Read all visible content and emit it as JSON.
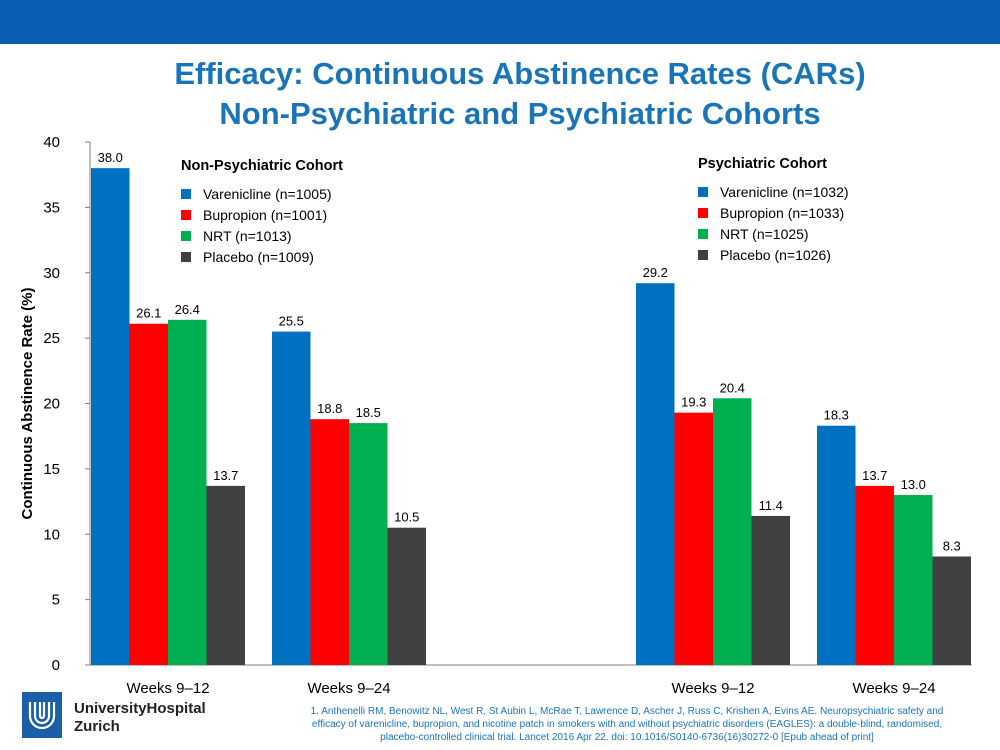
{
  "header": {
    "title_line1": "Efficacy:  Continuous Abstinence Rates (CARs)",
    "title_line2": "Non-Psychiatric and Psychiatric Cohorts"
  },
  "chart_data": {
    "type": "bar",
    "ylabel": "Continuous Abstinence Rate (%)",
    "ylim": [
      0,
      40
    ],
    "yticks": [
      0,
      5,
      10,
      15,
      20,
      25,
      30,
      35,
      40
    ],
    "categories": [
      "Weeks 9–12",
      "Weeks 9–24",
      "Weeks 9–12",
      "Weeks 9–24"
    ],
    "series": [
      {
        "name": "Varenicline",
        "color": "#0070c0",
        "values": [
          38.0,
          25.5,
          29.2,
          18.3
        ],
        "labels": [
          "38.0",
          "25.5",
          "29.2",
          "18.3"
        ]
      },
      {
        "name": "Bupropion",
        "color": "#ff0000",
        "values": [
          26.1,
          18.8,
          19.3,
          13.7
        ],
        "labels": [
          "26.1",
          "18.8",
          "19.3",
          "13.7"
        ]
      },
      {
        "name": "NRT",
        "color": "#00b050",
        "values": [
          26.4,
          18.5,
          20.4,
          13.0
        ],
        "labels": [
          "26.4",
          "18.5",
          "20.4",
          "13.0"
        ]
      },
      {
        "name": "Placebo",
        "color": "#404040",
        "values": [
          13.7,
          10.5,
          11.4,
          8.3
        ],
        "labels": [
          "13.7",
          "10.5",
          "11.4",
          "8.3"
        ]
      }
    ],
    "grid": false
  },
  "legends": [
    {
      "title": "Non-Psychiatric Cohort",
      "items": [
        {
          "label": "Varenicline (n=1005)",
          "color": "#0070c0"
        },
        {
          "label": "Bupropion (n=1001)",
          "color": "#ff0000"
        },
        {
          "label": "NRT (n=1013)",
          "color": "#00b050"
        },
        {
          "label": "Placebo (n=1009)",
          "color": "#404040"
        }
      ]
    },
    {
      "title": "Psychiatric Cohort",
      "items": [
        {
          "label": "Varenicline (n=1032)",
          "color": "#0070c0"
        },
        {
          "label": "Bupropion (n=1033)",
          "color": "#ff0000"
        },
        {
          "label": "NRT (n=1025)",
          "color": "#00b050"
        },
        {
          "label": "Placebo (n=1026)",
          "color": "#404040"
        }
      ]
    }
  ],
  "footer": {
    "logo_line1": "UniversityHospital",
    "logo_line2": "Zurich",
    "footnote_line1": "1. Anthenelli RM, Benowitz NL, West R, St Aubin L, McRae T, Lawrence D, Ascher J, Russ C, Krishen A, Evins AE. Neuropsychiatric safety and",
    "footnote_line2": "efficacy of varenicline, bupropion, and nicotine patch in smokers with and without psychiatric disorders (EAGLES): a double-blind, randomised,",
    "footnote_line3": "placebo-controlled clinical trial. Lancet 2016 Apr 22. doi: 10.1016/S0140-6736(16)30272-0 [Epub ahead of print]"
  }
}
